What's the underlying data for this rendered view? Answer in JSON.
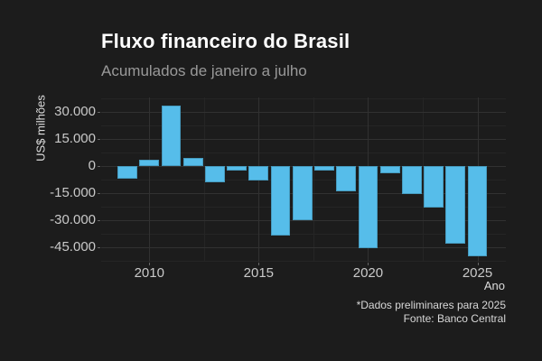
{
  "chart_data": {
    "type": "bar",
    "title": "Fluxo financeiro do Brasil",
    "subtitle": "Acumulados de janeiro a julho",
    "xlabel": "Ano",
    "ylabel": "US$ milhões",
    "note": "*Dados preliminares para 2025",
    "source": "Fonte: Banco Central",
    "legend": "none",
    "grid": true,
    "bar_color": "#56bdea",
    "background_color": "#1c1c1c",
    "categories": [
      2009,
      2010,
      2011,
      2012,
      2013,
      2014,
      2015,
      2016,
      2017,
      2018,
      2019,
      2020,
      2021,
      2022,
      2023,
      2024,
      2025
    ],
    "values": [
      -6800,
      3700,
      33400,
      4700,
      -9000,
      -2300,
      -8200,
      -38500,
      -30200,
      -2700,
      -14000,
      -45300,
      -4200,
      -15500,
      -23000,
      -43000,
      -49800
    ],
    "y_axis": {
      "min": -53000,
      "max": 38000,
      "major_ticks": [
        30000,
        15000,
        0,
        -15000,
        -30000,
        -45000
      ],
      "major_labels": [
        "30.000",
        "15.000",
        "0",
        "-15.000",
        "-30.000",
        "-45.000"
      ],
      "minor_ticks": [
        37500,
        22500,
        7500,
        -7500,
        -22500,
        -37500,
        -52500
      ]
    },
    "x_axis": {
      "min": 2007.8,
      "max": 2026.3,
      "major_ticks": [
        2010,
        2015,
        2020,
        2025
      ],
      "major_labels": [
        "2010",
        "2015",
        "2020",
        "2025"
      ],
      "minor_ticks": [
        2012.5,
        2017.5,
        2022.5
      ]
    },
    "bar_width_ratio": 0.9
  }
}
